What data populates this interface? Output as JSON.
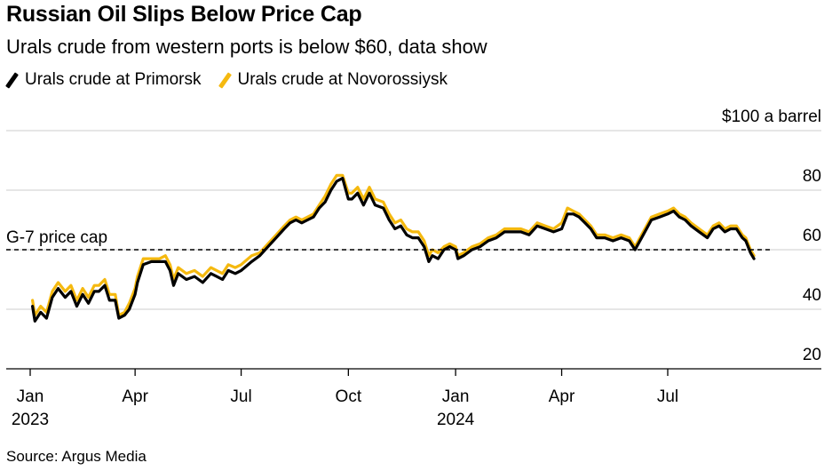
{
  "header": {
    "title": "Russian Oil Slips Below Price Cap",
    "subtitle": "Urals crude from western ports is below $60, data show"
  },
  "footer": {
    "source": "Source: Argus Media"
  },
  "colors": {
    "primorsk": "#000000",
    "novorossiysk": "#f5b90f",
    "grid": "#d6d6d6",
    "cap": "#000000"
  },
  "chart_data": {
    "type": "line",
    "title": "Russian Oil Slips Below Price Cap",
    "subtitle": "Urals crude from western ports is below $60, data show",
    "y_unit_label": "$100 a barrel",
    "ylim": [
      20,
      100
    ],
    "y_ticks": [
      20,
      40,
      60,
      80,
      100
    ],
    "y_tick_labels": [
      "20",
      "40",
      "60",
      "80",
      "$100 a barrel"
    ],
    "grid": true,
    "legend_position": "top-left",
    "x_tick_labels": [
      {
        "date": "2023-01-01",
        "label": "Jan",
        "year": "2023"
      },
      {
        "date": "2023-04-01",
        "label": "Apr",
        "year": ""
      },
      {
        "date": "2023-07-01",
        "label": "Jul",
        "year": ""
      },
      {
        "date": "2023-10-01",
        "label": "Oct",
        "year": ""
      },
      {
        "date": "2024-01-01",
        "label": "Jan",
        "year": "2024"
      },
      {
        "date": "2024-04-01",
        "label": "Apr",
        "year": ""
      },
      {
        "date": "2024-07-01",
        "label": "Jul",
        "year": ""
      }
    ],
    "x_range": [
      "2023-01-01",
      "2024-10-17"
    ],
    "annotation": {
      "label": "G-7 price cap",
      "value": 60
    },
    "series": [
      {
        "name": "Urals crude at Primorsk",
        "color": "#000000",
        "points": [
          [
            "2023-01-03",
            41
          ],
          [
            "2023-01-05",
            36
          ],
          [
            "2023-01-10",
            39
          ],
          [
            "2023-01-15",
            37
          ],
          [
            "2023-01-20",
            44
          ],
          [
            "2023-01-25",
            47
          ],
          [
            "2023-01-31",
            44
          ],
          [
            "2023-02-05",
            46
          ],
          [
            "2023-02-10",
            41
          ],
          [
            "2023-02-15",
            45
          ],
          [
            "2023-02-20",
            42
          ],
          [
            "2023-02-25",
            46
          ],
          [
            "2023-03-01",
            46
          ],
          [
            "2023-03-06",
            48
          ],
          [
            "2023-03-10",
            43
          ],
          [
            "2023-03-15",
            43
          ],
          [
            "2023-03-18",
            37
          ],
          [
            "2023-03-23",
            38
          ],
          [
            "2023-03-27",
            40
          ],
          [
            "2023-04-01",
            45
          ],
          [
            "2023-04-03",
            49
          ],
          [
            "2023-04-08",
            55
          ],
          [
            "2023-04-15",
            56
          ],
          [
            "2023-04-22",
            56
          ],
          [
            "2023-04-27",
            56
          ],
          [
            "2023-05-01",
            53
          ],
          [
            "2023-05-04",
            48
          ],
          [
            "2023-05-08",
            52
          ],
          [
            "2023-05-15",
            50
          ],
          [
            "2023-05-22",
            51
          ],
          [
            "2023-05-29",
            49
          ],
          [
            "2023-06-05",
            52
          ],
          [
            "2023-06-10",
            51
          ],
          [
            "2023-06-15",
            50
          ],
          [
            "2023-06-20",
            53
          ],
          [
            "2023-06-26",
            52
          ],
          [
            "2023-07-01",
            53
          ],
          [
            "2023-07-04",
            54
          ],
          [
            "2023-07-10",
            56
          ],
          [
            "2023-07-17",
            58
          ],
          [
            "2023-07-24",
            61
          ],
          [
            "2023-07-31",
            64
          ],
          [
            "2023-08-07",
            67
          ],
          [
            "2023-08-12",
            69
          ],
          [
            "2023-08-17",
            70
          ],
          [
            "2023-08-22",
            69
          ],
          [
            "2023-08-27",
            70
          ],
          [
            "2023-09-01",
            71
          ],
          [
            "2023-09-06",
            74
          ],
          [
            "2023-09-11",
            76
          ],
          [
            "2023-09-16",
            80
          ],
          [
            "2023-09-21",
            83
          ],
          [
            "2023-09-26",
            84
          ],
          [
            "2023-10-01",
            77
          ],
          [
            "2023-10-04",
            77
          ],
          [
            "2023-10-09",
            79
          ],
          [
            "2023-10-14",
            75
          ],
          [
            "2023-10-19",
            79
          ],
          [
            "2023-10-24",
            75
          ],
          [
            "2023-10-31",
            74
          ],
          [
            "2023-11-05",
            70
          ],
          [
            "2023-11-10",
            67
          ],
          [
            "2023-11-15",
            68
          ],
          [
            "2023-11-20",
            65
          ],
          [
            "2023-11-25",
            64
          ],
          [
            "2023-11-30",
            64
          ],
          [
            "2023-12-05",
            61
          ],
          [
            "2023-12-09",
            56
          ],
          [
            "2023-12-12",
            58
          ],
          [
            "2023-12-17",
            57
          ],
          [
            "2023-12-22",
            60
          ],
          [
            "2023-12-27",
            61
          ],
          [
            "2024-01-01",
            60
          ],
          [
            "2024-01-03",
            57
          ],
          [
            "2024-01-08",
            58
          ],
          [
            "2024-01-15",
            60
          ],
          [
            "2024-01-22",
            61
          ],
          [
            "2024-01-29",
            63
          ],
          [
            "2024-02-05",
            64
          ],
          [
            "2024-02-12",
            66
          ],
          [
            "2024-02-19",
            66
          ],
          [
            "2024-02-26",
            66
          ],
          [
            "2024-03-04",
            65
          ],
          [
            "2024-03-11",
            68
          ],
          [
            "2024-03-18",
            67
          ],
          [
            "2024-03-25",
            66
          ],
          [
            "2024-04-01",
            67
          ],
          [
            "2024-04-06",
            72
          ],
          [
            "2024-04-11",
            72
          ],
          [
            "2024-04-16",
            71
          ],
          [
            "2024-04-21",
            69
          ],
          [
            "2024-04-26",
            67
          ],
          [
            "2024-05-01",
            64
          ],
          [
            "2024-05-08",
            64
          ],
          [
            "2024-05-15",
            63
          ],
          [
            "2024-05-22",
            64
          ],
          [
            "2024-05-29",
            63
          ],
          [
            "2024-06-03",
            60
          ],
          [
            "2024-06-10",
            65
          ],
          [
            "2024-06-17",
            70
          ],
          [
            "2024-06-24",
            71
          ],
          [
            "2024-07-01",
            72
          ],
          [
            "2024-07-06",
            73
          ],
          [
            "2024-07-11",
            71
          ],
          [
            "2024-07-16",
            70
          ],
          [
            "2024-07-21",
            68
          ],
          [
            "2024-07-28",
            66
          ],
          [
            "2024-08-04",
            64
          ],
          [
            "2024-08-09",
            67
          ],
          [
            "2024-08-14",
            68
          ],
          [
            "2024-08-19",
            66
          ],
          [
            "2024-08-24",
            67
          ],
          [
            "2024-08-29",
            67
          ],
          [
            "2024-09-03",
            64
          ],
          [
            "2024-09-06",
            63
          ],
          [
            "2024-09-10",
            59
          ],
          [
            "2024-09-13",
            57
          ]
        ]
      },
      {
        "name": "Urals crude at Novorossiysk",
        "color": "#f5b90f",
        "points": [
          [
            "2023-01-03",
            43
          ],
          [
            "2023-01-05",
            38
          ],
          [
            "2023-01-10",
            41
          ],
          [
            "2023-01-15",
            39
          ],
          [
            "2023-01-20",
            46
          ],
          [
            "2023-01-25",
            49
          ],
          [
            "2023-01-31",
            46
          ],
          [
            "2023-02-05",
            48
          ],
          [
            "2023-02-10",
            43
          ],
          [
            "2023-02-15",
            47
          ],
          [
            "2023-02-20",
            44
          ],
          [
            "2023-02-25",
            48
          ],
          [
            "2023-03-01",
            48
          ],
          [
            "2023-03-06",
            50
          ],
          [
            "2023-03-10",
            45
          ],
          [
            "2023-03-15",
            45
          ],
          [
            "2023-03-18",
            38
          ],
          [
            "2023-03-23",
            39
          ],
          [
            "2023-03-27",
            42
          ],
          [
            "2023-04-01",
            47
          ],
          [
            "2023-04-03",
            51
          ],
          [
            "2023-04-08",
            57
          ],
          [
            "2023-04-15",
            57
          ],
          [
            "2023-04-22",
            57
          ],
          [
            "2023-04-27",
            58
          ],
          [
            "2023-05-01",
            55
          ],
          [
            "2023-05-04",
            50
          ],
          [
            "2023-05-08",
            54
          ],
          [
            "2023-05-15",
            52
          ],
          [
            "2023-05-22",
            53
          ],
          [
            "2023-05-29",
            51
          ],
          [
            "2023-06-05",
            54
          ],
          [
            "2023-06-10",
            53
          ],
          [
            "2023-06-15",
            52
          ],
          [
            "2023-06-20",
            55
          ],
          [
            "2023-06-26",
            54
          ],
          [
            "2023-07-01",
            55
          ],
          [
            "2023-07-04",
            56
          ],
          [
            "2023-07-10",
            58
          ],
          [
            "2023-07-17",
            59
          ],
          [
            "2023-07-24",
            62
          ],
          [
            "2023-07-31",
            65
          ],
          [
            "2023-08-07",
            68
          ],
          [
            "2023-08-12",
            70
          ],
          [
            "2023-08-17",
            71
          ],
          [
            "2023-08-22",
            70
          ],
          [
            "2023-08-27",
            71
          ],
          [
            "2023-09-01",
            72
          ],
          [
            "2023-09-06",
            75
          ],
          [
            "2023-09-11",
            78
          ],
          [
            "2023-09-16",
            82
          ],
          [
            "2023-09-21",
            85
          ],
          [
            "2023-09-26",
            85
          ],
          [
            "2023-10-01",
            79
          ],
          [
            "2023-10-04",
            79
          ],
          [
            "2023-10-09",
            81
          ],
          [
            "2023-10-14",
            77
          ],
          [
            "2023-10-19",
            81
          ],
          [
            "2023-10-24",
            77
          ],
          [
            "2023-10-31",
            76
          ],
          [
            "2023-11-05",
            72
          ],
          [
            "2023-11-10",
            69
          ],
          [
            "2023-11-15",
            70
          ],
          [
            "2023-11-20",
            67
          ],
          [
            "2023-11-25",
            66
          ],
          [
            "2023-11-30",
            66
          ],
          [
            "2023-12-05",
            63
          ],
          [
            "2023-12-09",
            58
          ],
          [
            "2023-12-12",
            60
          ],
          [
            "2023-12-17",
            59
          ],
          [
            "2023-12-22",
            61
          ],
          [
            "2023-12-27",
            62
          ],
          [
            "2024-01-01",
            61
          ],
          [
            "2024-01-03",
            58
          ],
          [
            "2024-01-08",
            59
          ],
          [
            "2024-01-15",
            61
          ],
          [
            "2024-01-22",
            62
          ],
          [
            "2024-01-29",
            64
          ],
          [
            "2024-02-05",
            65
          ],
          [
            "2024-02-12",
            67
          ],
          [
            "2024-02-19",
            67
          ],
          [
            "2024-02-26",
            67
          ],
          [
            "2024-03-04",
            66
          ],
          [
            "2024-03-11",
            69
          ],
          [
            "2024-03-18",
            68
          ],
          [
            "2024-03-25",
            67
          ],
          [
            "2024-04-01",
            69
          ],
          [
            "2024-04-06",
            74
          ],
          [
            "2024-04-11",
            73
          ],
          [
            "2024-04-16",
            72
          ],
          [
            "2024-04-21",
            70
          ],
          [
            "2024-04-26",
            68
          ],
          [
            "2024-05-01",
            65
          ],
          [
            "2024-05-08",
            65
          ],
          [
            "2024-05-15",
            64
          ],
          [
            "2024-05-22",
            65
          ],
          [
            "2024-05-29",
            64
          ],
          [
            "2024-06-03",
            61
          ],
          [
            "2024-06-10",
            66
          ],
          [
            "2024-06-17",
            71
          ],
          [
            "2024-06-24",
            72
          ],
          [
            "2024-07-01",
            73
          ],
          [
            "2024-07-06",
            74
          ],
          [
            "2024-07-11",
            72
          ],
          [
            "2024-07-16",
            71
          ],
          [
            "2024-07-21",
            69
          ],
          [
            "2024-07-28",
            67
          ],
          [
            "2024-08-04",
            65
          ],
          [
            "2024-08-09",
            68
          ],
          [
            "2024-08-14",
            69
          ],
          [
            "2024-08-19",
            67
          ],
          [
            "2024-08-24",
            68
          ],
          [
            "2024-08-29",
            68
          ],
          [
            "2024-09-03",
            65
          ],
          [
            "2024-09-06",
            64
          ],
          [
            "2024-09-10",
            60
          ],
          [
            "2024-09-13",
            58
          ]
        ]
      }
    ]
  }
}
